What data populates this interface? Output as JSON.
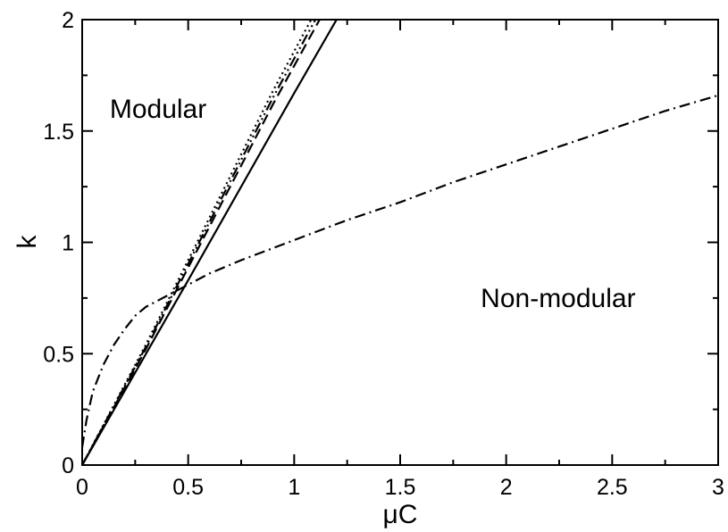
{
  "chart_data": {
    "type": "line",
    "xlabel": "μC",
    "ylabel": "k",
    "xlim": [
      0,
      3
    ],
    "ylim": [
      0,
      2
    ],
    "x_ticks": [
      0,
      0.5,
      1,
      1.5,
      2,
      2.5,
      3
    ],
    "x_tick_labels": [
      "0",
      "0.5",
      "1",
      "1.5",
      "2",
      "2.5",
      "3"
    ],
    "y_ticks": [
      0,
      0.5,
      1,
      1.5,
      2
    ],
    "y_tick_labels": [
      "0",
      "0.5",
      "1",
      "1.5",
      "2"
    ],
    "minor_ticks": true,
    "grid": false,
    "legend": "none",
    "annotations": [
      {
        "text": "Modular",
        "x": 0.13,
        "y": 1.56
      },
      {
        "text": "Non-modular",
        "x": 1.88,
        "y": 0.71
      }
    ],
    "series": [
      {
        "style": "solid",
        "color": "#000000",
        "points": [
          [
            0,
            0
          ],
          [
            0.5,
            0.83
          ],
          [
            1.0,
            1.67
          ],
          [
            1.2,
            2.0
          ]
        ]
      },
      {
        "style": "dashed",
        "color": "#000000",
        "points": [
          [
            0,
            0
          ],
          [
            0.3,
            0.52
          ],
          [
            0.6,
            1.07
          ],
          [
            0.9,
            1.62
          ],
          [
            1.12,
            2.0
          ]
        ]
      },
      {
        "style": "dash-dot-dot",
        "color": "#000000",
        "points": [
          [
            0,
            0
          ],
          [
            0.3,
            0.53
          ],
          [
            0.6,
            1.09
          ],
          [
            0.9,
            1.65
          ],
          [
            1.1,
            2.0
          ]
        ]
      },
      {
        "style": "dotted",
        "color": "#000000",
        "points": [
          [
            0,
            0
          ],
          [
            0.3,
            0.54
          ],
          [
            0.6,
            1.11
          ],
          [
            0.9,
            1.68
          ],
          [
            1.08,
            2.0
          ]
        ]
      },
      {
        "style": "dash-dot",
        "color": "#000000",
        "points": [
          [
            0,
            0.08
          ],
          [
            0.02,
            0.2
          ],
          [
            0.05,
            0.33
          ],
          [
            0.1,
            0.45
          ],
          [
            0.15,
            0.54
          ],
          [
            0.2,
            0.61
          ],
          [
            0.25,
            0.67
          ],
          [
            0.3,
            0.71
          ],
          [
            0.4,
            0.76
          ],
          [
            0.5,
            0.81
          ],
          [
            0.6,
            0.86
          ],
          [
            0.75,
            0.92
          ],
          [
            1.0,
            1.01
          ],
          [
            1.25,
            1.1
          ],
          [
            1.5,
            1.18
          ],
          [
            1.75,
            1.27
          ],
          [
            2.0,
            1.35
          ],
          [
            2.25,
            1.43
          ],
          [
            2.5,
            1.51
          ],
          [
            2.75,
            1.59
          ],
          [
            3.0,
            1.66
          ]
        ]
      }
    ]
  }
}
